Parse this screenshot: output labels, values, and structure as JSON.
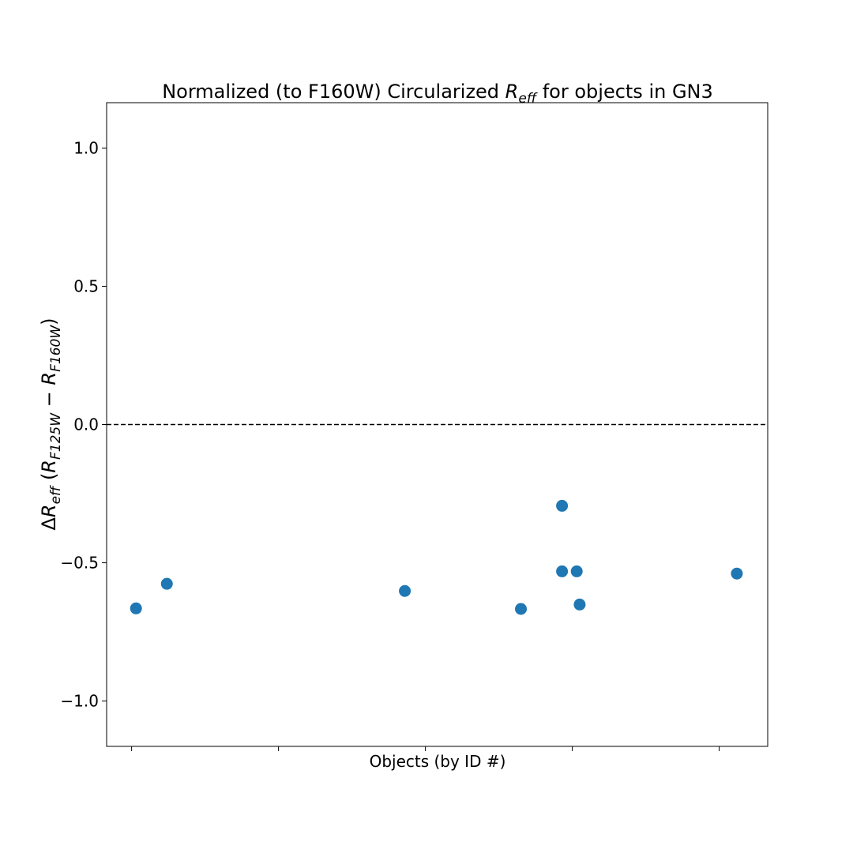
{
  "chart_data": {
    "type": "scatter",
    "title": {
      "prefix": "Normalized (to F160W) Circularized ",
      "math_base": "R",
      "math_sub": "eff",
      "suffix": " for objects in GN3"
    },
    "xlabel": "Objects (by ID #)",
    "ylabel": {
      "delta": "Δ",
      "r": "R",
      "eff": "eff",
      "open": " (",
      "r1": "R",
      "r1_sub": "F125W",
      "minus": " − ",
      "r2": "R",
      "r2_sub": "F160W",
      "close": ")"
    },
    "xlim": [
      -0.17,
      4.33
    ],
    "ylim": [
      -1.164,
      1.164
    ],
    "x_ticks": [
      0,
      1,
      2,
      3,
      4
    ],
    "y_ticks": [
      {
        "value": 1.0,
        "label": "1.0"
      },
      {
        "value": 0.5,
        "label": "0.5"
      },
      {
        "value": 0.0,
        "label": "0.0"
      },
      {
        "value": -0.5,
        "label": "−0.5"
      },
      {
        "value": -1.0,
        "label": "−1.0"
      }
    ],
    "reference_line": {
      "y": 0.0,
      "style": "dashed"
    },
    "grid": false,
    "series": [
      {
        "color": "#1f77b4",
        "points": [
          {
            "x": 0.03,
            "y": -0.665
          },
          {
            "x": 0.24,
            "y": -0.576
          },
          {
            "x": 1.86,
            "y": -0.602
          },
          {
            "x": 2.65,
            "y": -0.667
          },
          {
            "x": 2.93,
            "y": -0.294
          },
          {
            "x": 2.93,
            "y": -0.531
          },
          {
            "x": 3.03,
            "y": -0.531
          },
          {
            "x": 3.05,
            "y": -0.651
          },
          {
            "x": 4.12,
            "y": -0.539
          }
        ]
      }
    ]
  }
}
